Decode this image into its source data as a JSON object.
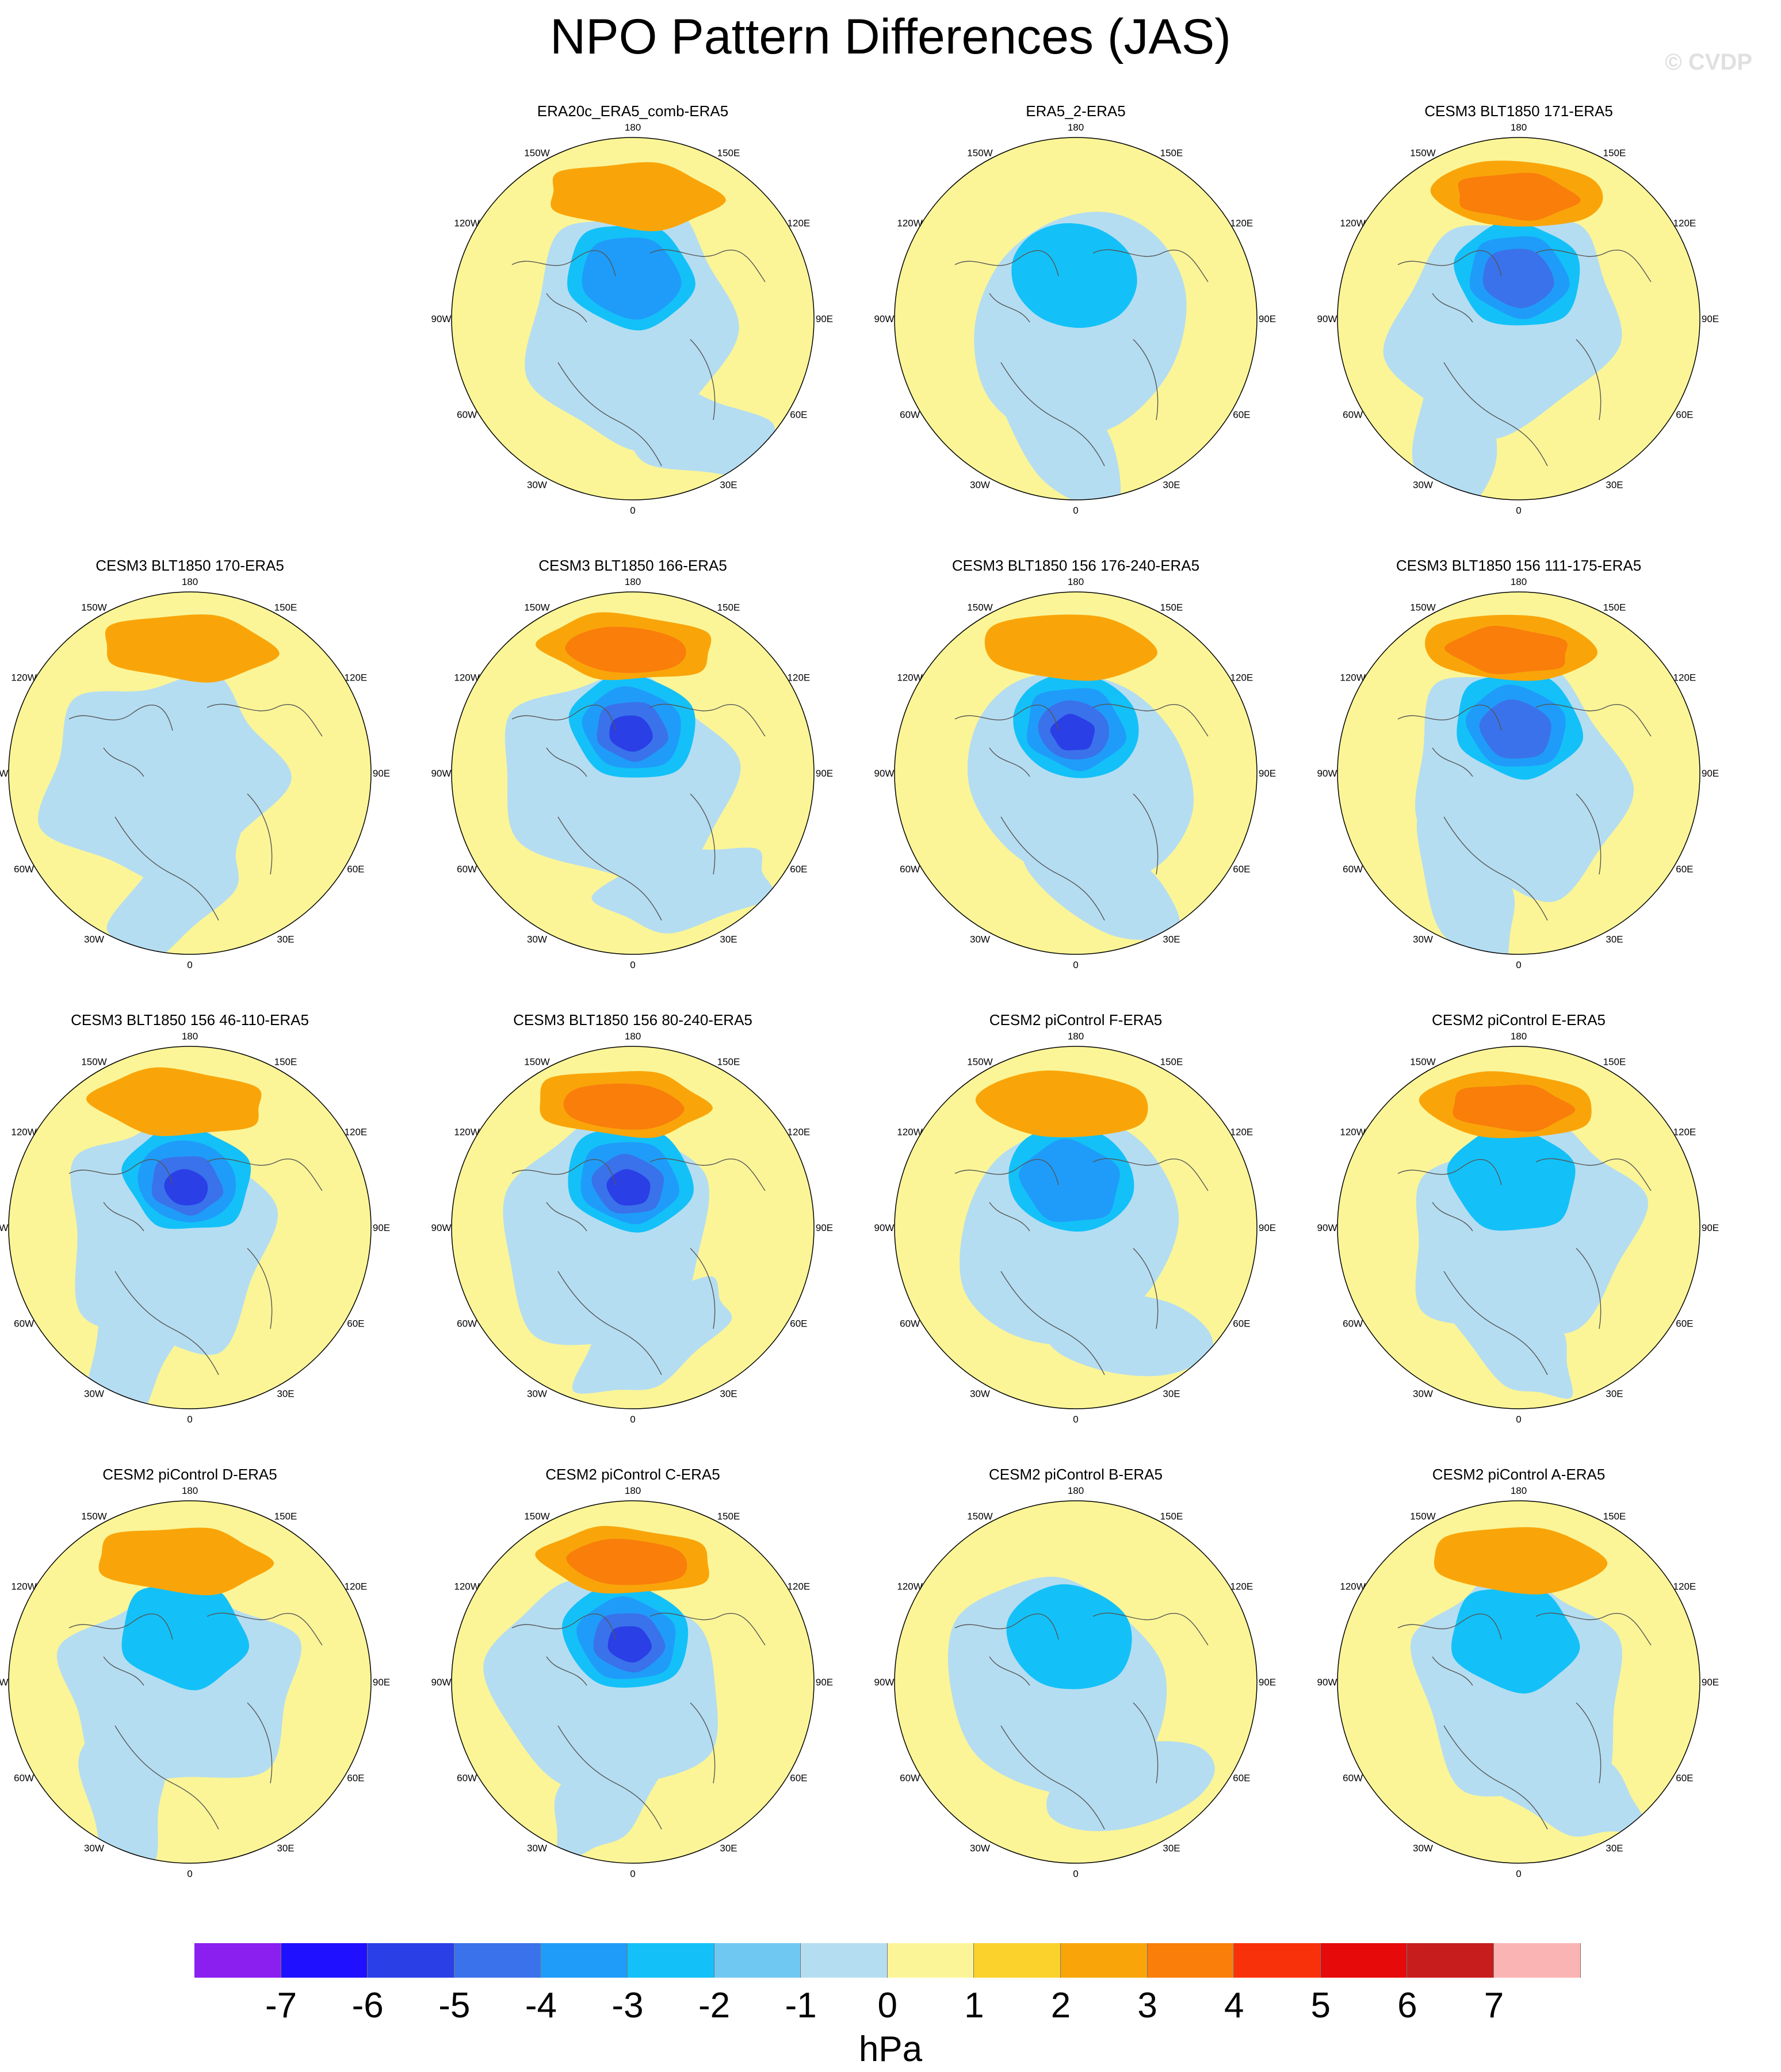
{
  "title": "NPO Pattern Differences (JAS)",
  "watermark": "© CVDP",
  "lon_labels": [
    "180",
    "150E",
    "120E",
    "90E",
    "60E",
    "30E",
    "0",
    "30W",
    "60W",
    "90W",
    "120W",
    "150W"
  ],
  "chart_data": {
    "type": "heatmap",
    "projection": "polar stereographic, North Hemisphere",
    "units": "hPa",
    "levels": [
      -7,
      -6,
      -5,
      -4,
      -3,
      -2,
      -1,
      0,
      1,
      2,
      3,
      4,
      5,
      6,
      7
    ],
    "level_labels": [
      "-7",
      "-6",
      "-5",
      "-4",
      "-3",
      "-2",
      "-1",
      "0",
      "1",
      "2",
      "3",
      "4",
      "5",
      "6",
      "7"
    ],
    "colors": [
      "#8a1ff0",
      "#1f10ff",
      "#2a3fe6",
      "#3a72eb",
      "#1f9cf9",
      "#13c1f8",
      "#6fc8f2",
      "#b5ddf1",
      "#fbf597",
      "#fbd12c",
      "#f9a50a",
      "#f97e0a",
      "#f9310a",
      "#e60a0a",
      "#c81d1d",
      "#fbb4b4"
    ],
    "panels": [
      {
        "title": "ERA20c_ERA5_comb-ERA5",
        "min": -3,
        "max": 2
      },
      {
        "title": "ERA5_2-ERA5",
        "min": -2,
        "max": 1
      },
      {
        "title": "CESM3 BLT1850 171-ERA5",
        "min": -4,
        "max": 3
      },
      {
        "title": "CESM3 BLT1850 170-ERA5",
        "min": -1,
        "max": 2
      },
      {
        "title": "CESM3 BLT1850 166-ERA5",
        "min": -5,
        "max": 3
      },
      {
        "title": "CESM3 BLT1850 156 176-240-ERA5",
        "min": -5,
        "max": 2
      },
      {
        "title": "CESM3 BLT1850 156 111-175-ERA5",
        "min": -4,
        "max": 3
      },
      {
        "title": "CESM3 BLT1850 156 46-110-ERA5",
        "min": -5,
        "max": 2
      },
      {
        "title": "CESM3 BLT1850 156 80-240-ERA5",
        "min": -5,
        "max": 3
      },
      {
        "title": "CESM2 piControl F-ERA5",
        "min": -3,
        "max": 2
      },
      {
        "title": "CESM2 piControl E-ERA5",
        "min": -2,
        "max": 3
      },
      {
        "title": "CESM2 piControl D-ERA5",
        "min": -2,
        "max": 2
      },
      {
        "title": "CESM2 piControl C-ERA5",
        "min": -5,
        "max": 3
      },
      {
        "title": "CESM2 piControl B-ERA5",
        "min": -2,
        "max": 1
      },
      {
        "title": "CESM2 piControl A-ERA5",
        "min": -2,
        "max": 2
      }
    ]
  }
}
